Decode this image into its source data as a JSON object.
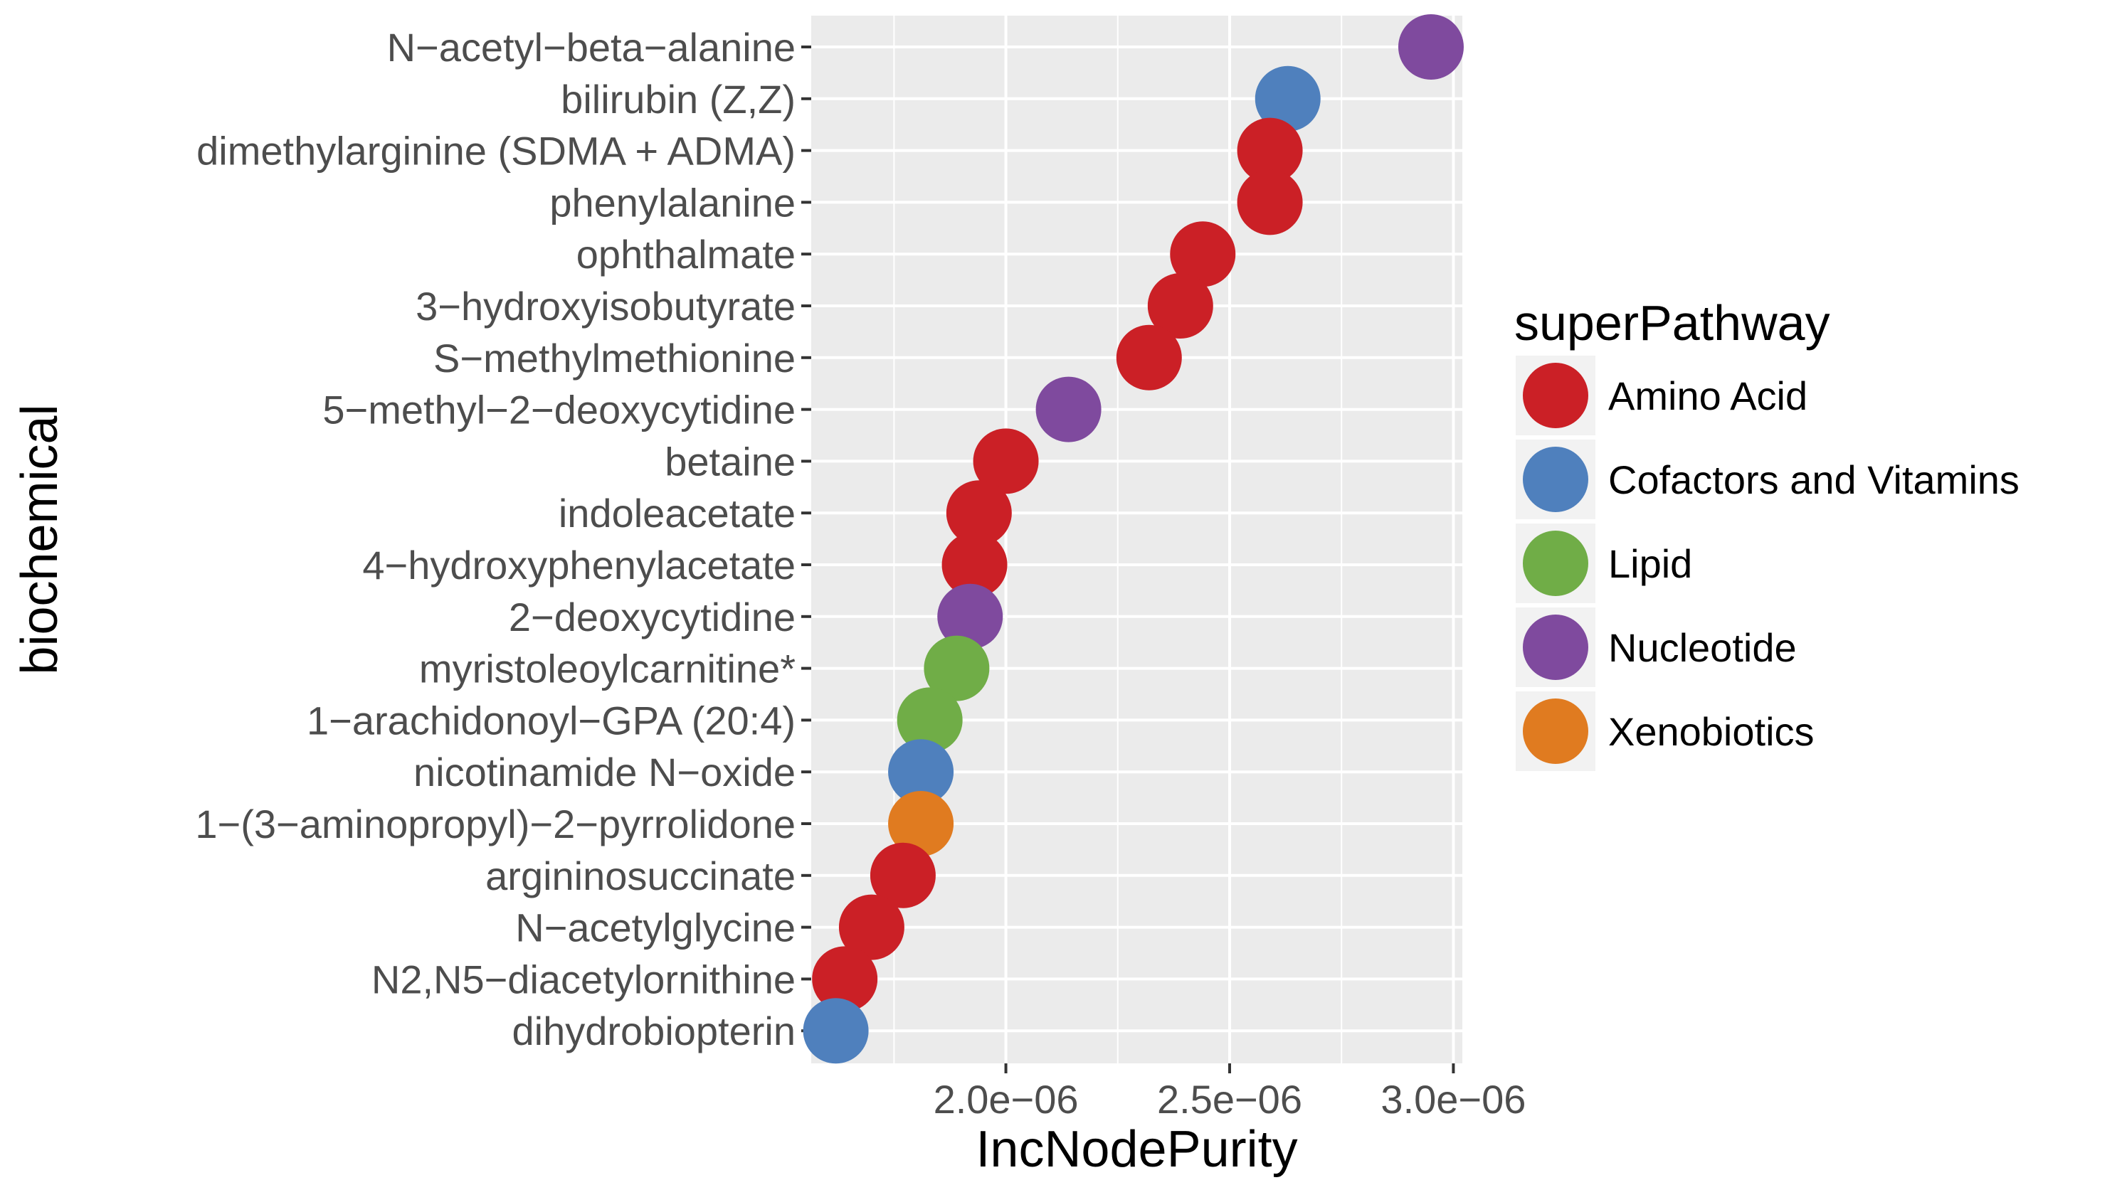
{
  "chart_data": {
    "type": "scatter",
    "xlabel": "IncNodePurity",
    "ylabel": "biochemical",
    "x_ticks": [
      "2.0e−06",
      "2.5e−06",
      "3.0e−06"
    ],
    "x_tick_values": [
      2e-06,
      2.5e-06,
      3e-06
    ],
    "xlim": [
      1.565e-06,
      3.02e-06
    ],
    "grid": true,
    "legend": {
      "title": "superPathway",
      "position": "right",
      "entries": [
        {
          "label": "Amino Acid",
          "color": "#cb2026"
        },
        {
          "label": "Cofactors and Vitamins",
          "color": "#4f80bd"
        },
        {
          "label": "Lipid",
          "color": "#70ad47"
        },
        {
          "label": "Nucleotide",
          "color": "#7f4a9e"
        },
        {
          "label": "Xenobiotics",
          "color": "#e07b20"
        }
      ]
    },
    "points": [
      {
        "label": "N−acetyl−beta−alanine",
        "x": 2.95e-06,
        "group": "Nucleotide"
      },
      {
        "label": "bilirubin (Z,Z)",
        "x": 2.63e-06,
        "group": "Cofactors and Vitamins"
      },
      {
        "label": "dimethylarginine (SDMA + ADMA)",
        "x": 2.59e-06,
        "group": "Amino Acid"
      },
      {
        "label": "phenylalanine",
        "x": 2.59e-06,
        "group": "Amino Acid"
      },
      {
        "label": "ophthalmate",
        "x": 2.44e-06,
        "group": "Amino Acid"
      },
      {
        "label": "3−hydroxyisobutyrate",
        "x": 2.39e-06,
        "group": "Amino Acid"
      },
      {
        "label": "S−methylmethionine",
        "x": 2.32e-06,
        "group": "Amino Acid"
      },
      {
        "label": "5−methyl−2−deoxycytidine",
        "x": 2.14e-06,
        "group": "Nucleotide"
      },
      {
        "label": "betaine",
        "x": 2e-06,
        "group": "Amino Acid"
      },
      {
        "label": "indoleacetate",
        "x": 1.94e-06,
        "group": "Amino Acid"
      },
      {
        "label": "4−hydroxyphenylacetate",
        "x": 1.93e-06,
        "group": "Amino Acid"
      },
      {
        "label": "2−deoxycytidine",
        "x": 1.92e-06,
        "group": "Nucleotide"
      },
      {
        "label": "myristoleoylcarnitine*",
        "x": 1.89e-06,
        "group": "Lipid"
      },
      {
        "label": "1−arachidonoyl−GPA (20:4)",
        "x": 1.83e-06,
        "group": "Lipid"
      },
      {
        "label": "nicotinamide N−oxide",
        "x": 1.81e-06,
        "group": "Cofactors and Vitamins"
      },
      {
        "label": "1−(3−aminopropyl)−2−pyrrolidone",
        "x": 1.81e-06,
        "group": "Xenobiotics"
      },
      {
        "label": "argininosuccinate",
        "x": 1.77e-06,
        "group": "Amino Acid"
      },
      {
        "label": "N−acetylglycine",
        "x": 1.7e-06,
        "group": "Amino Acid"
      },
      {
        "label": "N2,N5−diacetylornithine",
        "x": 1.64e-06,
        "group": "Amino Acid"
      },
      {
        "label": "dihydrobiopterin",
        "x": 1.62e-06,
        "group": "Cofactors and Vitamins"
      }
    ]
  },
  "style": {
    "panel_bg": "#ebebeb",
    "grid_color": "#ffffff",
    "tick_color": "#333333"
  }
}
